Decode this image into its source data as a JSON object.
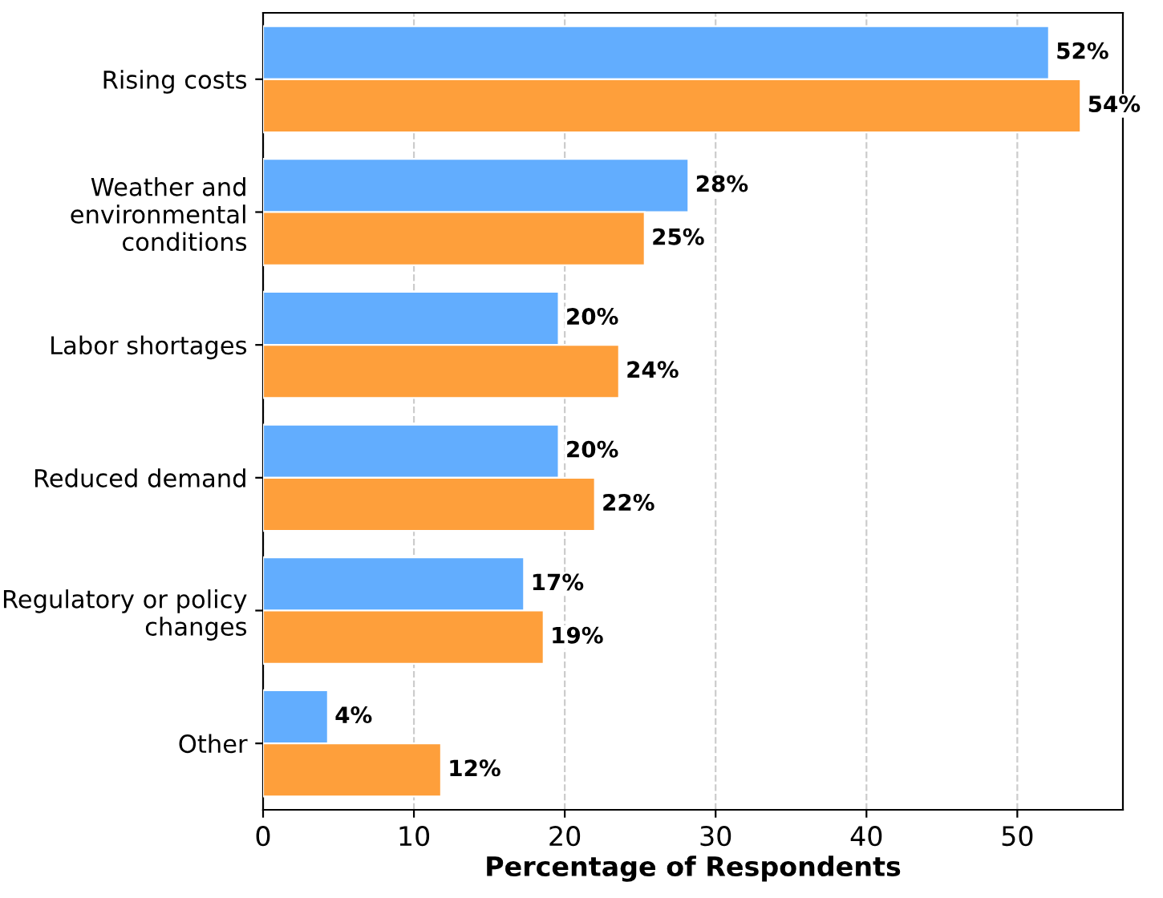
{
  "chart_data": {
    "type": "bar",
    "orientation": "horizontal",
    "xlabel": "Percentage of Respondents",
    "categories": [
      "Rising costs",
      "Weather and\nenvironmental\nconditions",
      "Labor shortages",
      "Reduced demand",
      "Regulatory or policy\nchanges",
      "Other"
    ],
    "series": [
      {
        "color": "#62adfe",
        "values": [
          52.1,
          28.2,
          19.6,
          19.6,
          17.3,
          4.3
        ],
        "value_labels": [
          "52%",
          "28%",
          "20%",
          "20%",
          "17%",
          "4%"
        ]
      },
      {
        "color": "#fe9f3b",
        "values": [
          54.2,
          25.3,
          23.6,
          22.0,
          18.6,
          11.8
        ],
        "value_labels": [
          "54%",
          "25%",
          "24%",
          "22%",
          "19%",
          "12%"
        ]
      }
    ],
    "xlim": [
      0,
      57
    ],
    "xticks": [
      0,
      10,
      20,
      30,
      40,
      50
    ],
    "grid": "x",
    "legend": false
  }
}
